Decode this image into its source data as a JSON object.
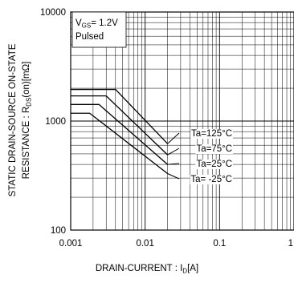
{
  "chart_data": {
    "type": "line",
    "title": "",
    "xlabel": {
      "main": "DRAIN-CURRENT : I",
      "sub": "D",
      "unit": "[A]"
    },
    "ylabel": {
      "line1": "STATIC DRAIN-SOURCE ON-STATE",
      "line2_main": "RESISTANCE : R",
      "line2_sub": "DS",
      "line2_unit": "(on)[mΩ]"
    },
    "x_scale": "log",
    "y_scale": "log",
    "xlim": [
      0.001,
      1
    ],
    "ylim": [
      100,
      10000
    ],
    "x_ticks": [
      {
        "value": 0.001,
        "label": "0.001"
      },
      {
        "value": 0.01,
        "label": "0.01"
      },
      {
        "value": 0.1,
        "label": "0.1"
      },
      {
        "value": 1,
        "label": "1"
      }
    ],
    "y_ticks": [
      {
        "value": 100,
        "label": "100"
      },
      {
        "value": 1000,
        "label": "1000"
      },
      {
        "value": 10000,
        "label": "10000"
      }
    ],
    "grid": true,
    "condition_box": {
      "vgs_main": "V",
      "vgs_sub": "GS",
      "vgs_value": "= 1.2V",
      "mode": "Pulsed"
    },
    "series": [
      {
        "name": "Ta=125°C",
        "x": [
          0.001,
          0.004,
          0.02
        ],
        "y": [
          1950,
          1950,
          620
        ]
      },
      {
        "name": "Ta=75°C",
        "x": [
          0.001,
          0.003,
          0.02
        ],
        "y": [
          1700,
          1700,
          490
        ]
      },
      {
        "name": "Ta=25°C",
        "x": [
          0.001,
          0.0024,
          0.02
        ],
        "y": [
          1420,
          1420,
          400
        ]
      },
      {
        "name": "Ta= -25°C",
        "x": [
          0.001,
          0.0018,
          0.02
        ],
        "y": [
          1180,
          1180,
          330
        ]
      }
    ]
  }
}
